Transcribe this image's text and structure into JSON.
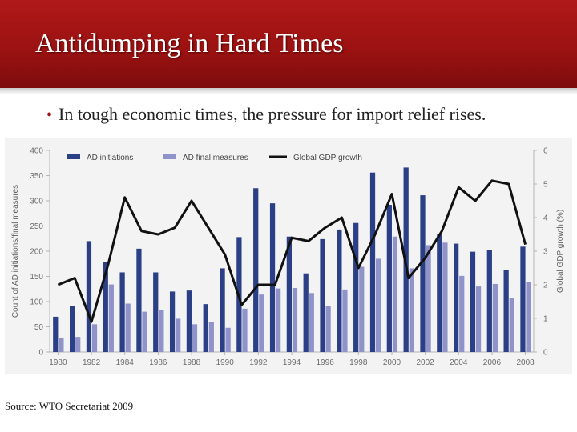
{
  "slide": {
    "title": "Antidumping in Hard Times",
    "bullet": "In tough economic times, the pressure for import relief rises.",
    "source": "Source: WTO Secretariat 2009"
  },
  "colors": {
    "banner": "#9c1212",
    "initiations": "#2b3f86",
    "final": "#8f93c9",
    "gdp": "#111111",
    "chart_bg": "#f3f3f3"
  },
  "chart_data": {
    "type": "bar",
    "x": [
      1980,
      1981,
      1982,
      1983,
      1984,
      1985,
      1986,
      1987,
      1988,
      1989,
      1990,
      1991,
      1992,
      1993,
      1994,
      1995,
      1996,
      1997,
      1998,
      1999,
      2000,
      2001,
      2002,
      2003,
      2004,
      2005,
      2006,
      2007,
      2008
    ],
    "xticks": [
      "1980",
      "1982",
      "1984",
      "1986",
      "1988",
      "1990",
      "1992",
      "1994",
      "1996",
      "1998",
      "2000",
      "2002",
      "2004",
      "2006",
      "2008"
    ],
    "yticks_left": [
      "0",
      "50",
      "100",
      "150",
      "200",
      "250",
      "300",
      "350",
      "400"
    ],
    "yticks_right": [
      "0",
      "1",
      "2",
      "3",
      "4",
      "5",
      "6"
    ],
    "ylim": [
      0,
      400
    ],
    "y2lim": [
      0,
      6
    ],
    "ylabel": "Count of AD initiations/final measures",
    "y2label": "Global GDP growth (%)",
    "legend_position": "top",
    "series": [
      {
        "name": "AD initiations",
        "type": "bar",
        "axis": "left",
        "values": [
          70,
          92,
          220,
          178,
          158,
          205,
          158,
          120,
          122,
          95,
          166,
          228,
          325,
          295,
          229,
          156,
          224,
          243,
          256,
          356,
          292,
          366,
          311,
          233,
          215,
          199,
          202,
          163,
          209
        ]
      },
      {
        "name": "AD final measures",
        "type": "bar",
        "axis": "left",
        "values": [
          28,
          30,
          55,
          134,
          96,
          80,
          84,
          66,
          55,
          60,
          48,
          86,
          114,
          126,
          127,
          117,
          91,
          124,
          169,
          185,
          229,
          166,
          212,
          217,
          151,
          130,
          135,
          107,
          139
        ]
      },
      {
        "name": "Global GDP growth",
        "type": "line",
        "axis": "right",
        "values": [
          2.0,
          2.2,
          0.9,
          2.6,
          4.6,
          3.6,
          3.5,
          3.7,
          4.5,
          3.7,
          2.9,
          1.4,
          2.0,
          2.0,
          3.4,
          3.3,
          3.7,
          4.0,
          2.5,
          3.5,
          4.7,
          2.2,
          2.8,
          3.6,
          4.9,
          4.5,
          5.1,
          5.0,
          3.2
        ]
      }
    ]
  }
}
